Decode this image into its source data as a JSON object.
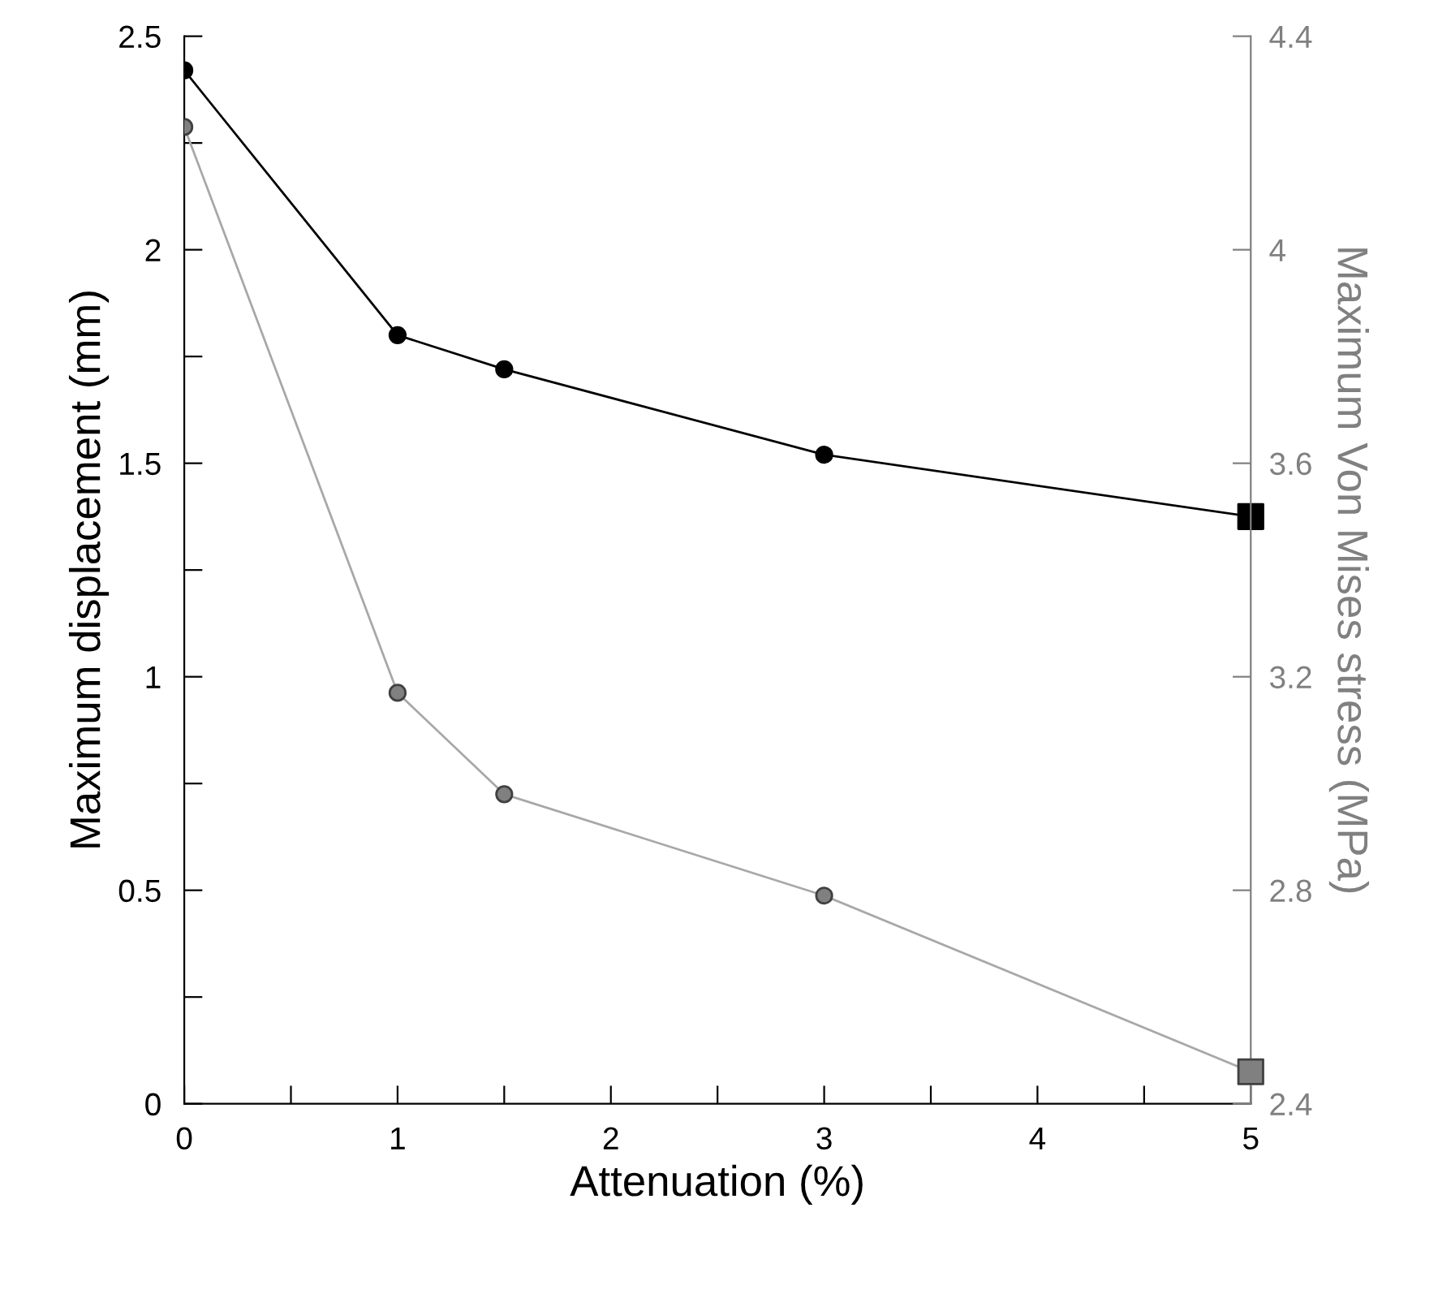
{
  "chart_data": {
    "type": "line",
    "xlabel": "Attenuation (%)",
    "ylabel": "Maximum displacement (mm)",
    "y2label": "Maximum Von Mises stress (MPa)",
    "xlim": [
      0,
      5
    ],
    "xticks": [
      0,
      {
        "value": 0.5,
        "label": null
      },
      1,
      {
        "value": 1.5,
        "label": null
      },
      2,
      {
        "value": 2.5,
        "label": null
      },
      3,
      {
        "value": 3.5,
        "label": null
      },
      4,
      {
        "value": 4.5,
        "label": null
      },
      5
    ],
    "ylim": [
      0,
      2.5
    ],
    "yticks": [
      0,
      {
        "value": 0.25,
        "label": null
      },
      0.5,
      {
        "value": 0.75,
        "label": null
      },
      1,
      {
        "value": 1.25,
        "label": null
      },
      1.5,
      {
        "value": 1.75,
        "label": null
      },
      2,
      {
        "value": 2.25,
        "label": null
      },
      2.5
    ],
    "y2lim": [
      2.4,
      4.4
    ],
    "y2ticks": [
      2.4,
      2.8,
      3.2,
      3.6,
      4,
      4.4
    ],
    "marker": "circle",
    "grid": false,
    "legend": false,
    "series": [
      {
        "color": "#000000",
        "x": [
          0,
          1,
          1.5,
          3,
          5
        ],
        "values": [
          2.42,
          1.8,
          1.72,
          1.52,
          1.375
        ]
      },
      {
        "type": "scatter",
        "marker": "square",
        "color": "#000000",
        "x": [
          5
        ],
        "values": [
          1.375
        ]
      },
      {
        "axis": "y2",
        "color": "#808080",
        "x": [
          0,
          1,
          1.5,
          3,
          5
        ],
        "values": [
          4.23,
          3.17,
          2.98,
          2.79,
          2.46
        ]
      },
      {
        "axis": "y2",
        "type": "scatter",
        "marker": "square",
        "color": "#808080",
        "x": [
          5
        ],
        "values": [
          2.46
        ]
      }
    ]
  }
}
